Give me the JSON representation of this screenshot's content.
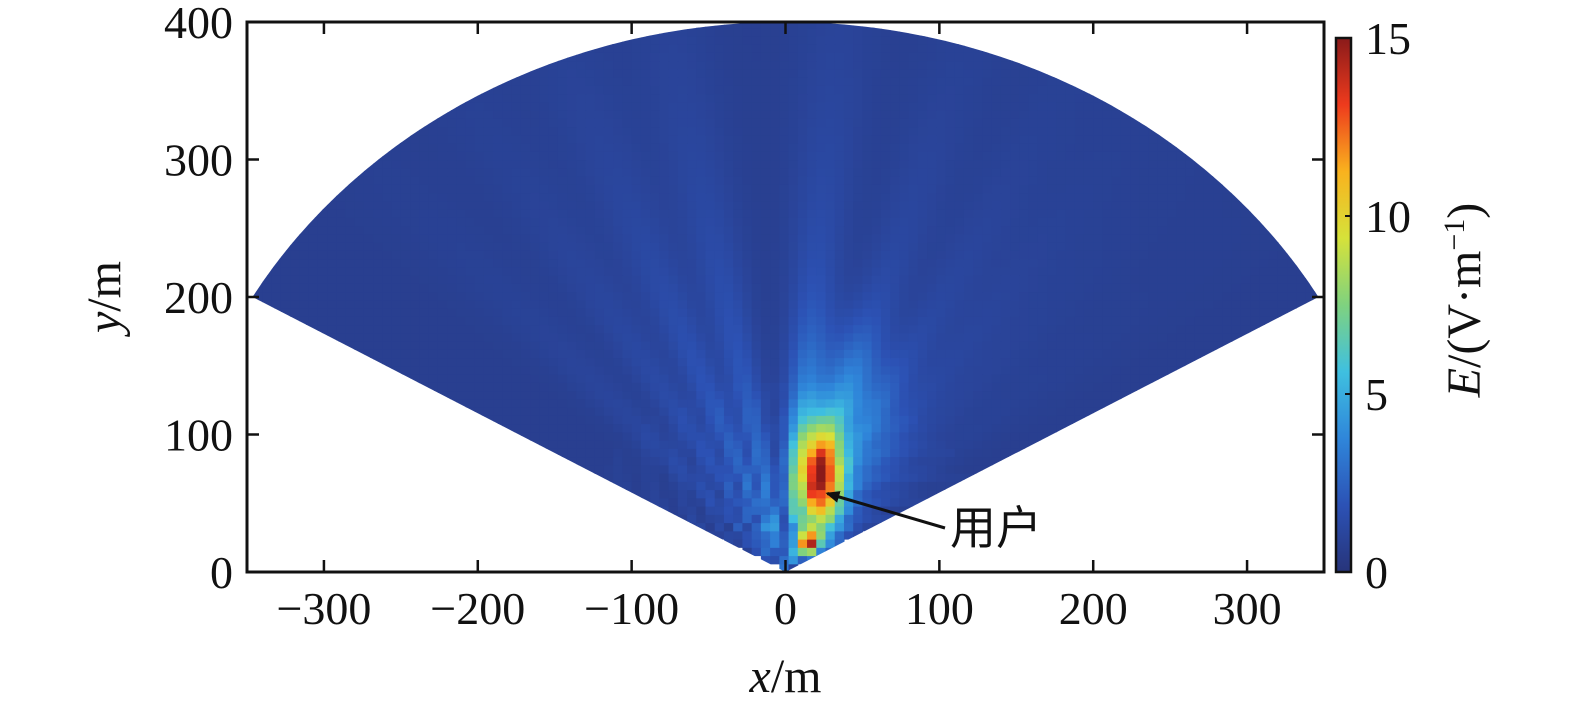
{
  "chart_data": {
    "type": "heatmap",
    "title": "",
    "xlabel": {
      "var": "x",
      "unit": "/m"
    },
    "ylabel": {
      "var": "y",
      "unit": "/m"
    },
    "xlim": [
      -350,
      350
    ],
    "ylim": [
      0,
      400
    ],
    "xticks": [
      -300,
      -200,
      -100,
      0,
      100,
      200,
      300
    ],
    "xtick_labels": [
      "−300",
      "−200",
      "−100",
      "0",
      "100",
      "200",
      "300"
    ],
    "yticks": [
      0,
      100,
      200,
      300,
      400
    ],
    "ytick_labels": [
      "0",
      "100",
      "200",
      "300",
      "400"
    ],
    "grid": false,
    "sector": {
      "origin": [
        0,
        0
      ],
      "radius": 400,
      "angle_min_deg": 30,
      "angle_max_deg": 150
    },
    "hotspots": [
      {
        "x": 22,
        "y": 70,
        "value": 14.5
      },
      {
        "x": 15,
        "y": 22,
        "value": 11.5
      }
    ],
    "colorbar": {
      "label": {
        "var": "E",
        "unit": "/(V·m",
        "sup": "−1",
        "close": ")"
      },
      "min": 0,
      "max": 15,
      "ticks": [
        0,
        5,
        10,
        15
      ],
      "tick_labels": [
        "0",
        "5",
        "10",
        "15"
      ],
      "colors": [
        "#27347a",
        "#2c52b5",
        "#2f86da",
        "#3fc0e0",
        "#7fd27f",
        "#d6e23a",
        "#f9b21e",
        "#ee3b1d",
        "#8a1a1a"
      ]
    },
    "annotations": [
      {
        "text": "用户",
        "x": 22,
        "y": 60
      }
    ]
  }
}
